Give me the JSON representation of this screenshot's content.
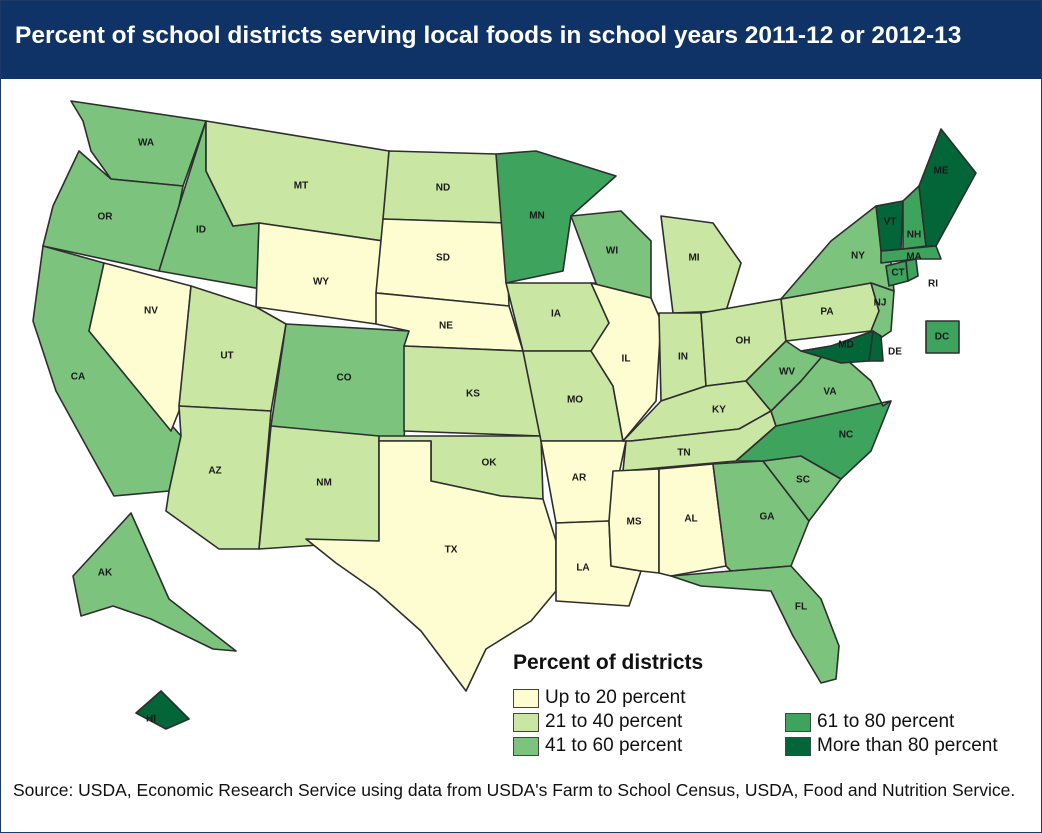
{
  "title": "Percent of school districts serving local foods in school years 2011-12 or 2012-13",
  "legend": {
    "title": "Percent of districts",
    "items": [
      {
        "key": "c1",
        "label": "Up to 20 percent",
        "color": "#fdfdd1"
      },
      {
        "key": "c2",
        "label": "21 to 40 percent",
        "color": "#c9e6a3"
      },
      {
        "key": "c3",
        "label": "41 to 60 percent",
        "color": "#7cc47e"
      },
      {
        "key": "c4",
        "label": "61 to 80 percent",
        "color": "#3ea35d"
      },
      {
        "key": "c5",
        "label": "More than 80 percent",
        "color": "#036638"
      }
    ]
  },
  "states": [
    {
      "abbr": "WA",
      "category": "c3"
    },
    {
      "abbr": "OR",
      "category": "c3"
    },
    {
      "abbr": "CA",
      "category": "c3"
    },
    {
      "abbr": "NV",
      "category": "c1"
    },
    {
      "abbr": "ID",
      "category": "c3"
    },
    {
      "abbr": "MT",
      "category": "c2"
    },
    {
      "abbr": "WY",
      "category": "c1"
    },
    {
      "abbr": "UT",
      "category": "c2"
    },
    {
      "abbr": "AZ",
      "category": "c2"
    },
    {
      "abbr": "CO",
      "category": "c3"
    },
    {
      "abbr": "NM",
      "category": "c2"
    },
    {
      "abbr": "ND",
      "category": "c2"
    },
    {
      "abbr": "SD",
      "category": "c1"
    },
    {
      "abbr": "NE",
      "category": "c1"
    },
    {
      "abbr": "KS",
      "category": "c2"
    },
    {
      "abbr": "OK",
      "category": "c2"
    },
    {
      "abbr": "TX",
      "category": "c1"
    },
    {
      "abbr": "MN",
      "category": "c4"
    },
    {
      "abbr": "IA",
      "category": "c2"
    },
    {
      "abbr": "MO",
      "category": "c2"
    },
    {
      "abbr": "AR",
      "category": "c1"
    },
    {
      "abbr": "LA",
      "category": "c1"
    },
    {
      "abbr": "WI",
      "category": "c3"
    },
    {
      "abbr": "IL",
      "category": "c1"
    },
    {
      "abbr": "MI",
      "category": "c2"
    },
    {
      "abbr": "IN",
      "category": "c2"
    },
    {
      "abbr": "OH",
      "category": "c2"
    },
    {
      "abbr": "KY",
      "category": "c2"
    },
    {
      "abbr": "TN",
      "category": "c2"
    },
    {
      "abbr": "MS",
      "category": "c1"
    },
    {
      "abbr": "AL",
      "category": "c1"
    },
    {
      "abbr": "GA",
      "category": "c3"
    },
    {
      "abbr": "FL",
      "category": "c3"
    },
    {
      "abbr": "SC",
      "category": "c3"
    },
    {
      "abbr": "NC",
      "category": "c4"
    },
    {
      "abbr": "VA",
      "category": "c3"
    },
    {
      "abbr": "WV",
      "category": "c3"
    },
    {
      "abbr": "PA",
      "category": "c2"
    },
    {
      "abbr": "NY",
      "category": "c3"
    },
    {
      "abbr": "NJ",
      "category": "c3"
    },
    {
      "abbr": "DE",
      "category": "c5"
    },
    {
      "abbr": "MD",
      "category": "c5"
    },
    {
      "abbr": "DC",
      "category": "c4"
    },
    {
      "abbr": "CT",
      "category": "c4"
    },
    {
      "abbr": "RI",
      "category": "c4"
    },
    {
      "abbr": "MA",
      "category": "c4"
    },
    {
      "abbr": "VT",
      "category": "c5"
    },
    {
      "abbr": "NH",
      "category": "c4"
    },
    {
      "abbr": "ME",
      "category": "c5"
    },
    {
      "abbr": "AK",
      "category": "c3"
    },
    {
      "abbr": "HI",
      "category": "c5"
    }
  ],
  "source": "Source: USDA, Economic Research Service using data from USDA's Farm to School Census, USDA, Food and Nutrition Service."
}
